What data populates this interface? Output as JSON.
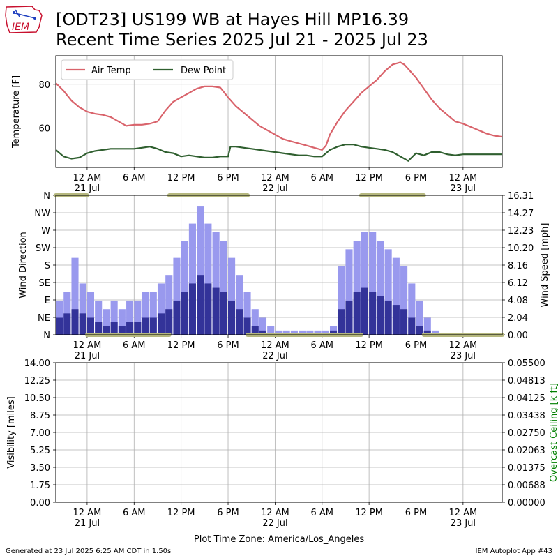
{
  "logo": {
    "text": "IEM"
  },
  "title_line1": "[ODT23] US199 WB at Hayes Hill MP16.39",
  "title_line2": "Recent Time Series 2025 Jul 21 - 2025 Jul 23",
  "footer_left": "Generated at 23 Jul 2025 6:25 AM CDT in 1.50s",
  "footer_right": "IEM Autoplot App #43",
  "timezone_label": "Plot Time Zone: America/Los_Angeles",
  "colors": {
    "air_temp": "#d9636b",
    "dew_point": "#2f5f2f",
    "gust": "#9999ee",
    "speed": "#333399",
    "direction": "#b5b77e",
    "ceiling_label": "#008000",
    "grid": "#b0b0b0"
  },
  "chart_data": [
    {
      "type": "line",
      "panel": "temperature",
      "ylabel": "Temperature [F]",
      "ylim": [
        42,
        93
      ],
      "yticks": [
        "60",
        "80"
      ],
      "ytick_values": [
        60,
        80
      ],
      "x_hours_range": [
        -4,
        53
      ],
      "xtick_hours": [
        0,
        6,
        12,
        18,
        24,
        30,
        36,
        42,
        48
      ],
      "xtick_labels": [
        "12 AM",
        "6 AM",
        "12 PM",
        "6 PM",
        "12 AM",
        "6 AM",
        "12 PM",
        "6 PM",
        "12 AM"
      ],
      "xtick_dates": [
        {
          "hour": 0,
          "label": "21 Jul"
        },
        {
          "hour": 24,
          "label": "22 Jul"
        },
        {
          "hour": 48,
          "label": "23 Jul"
        }
      ],
      "legend": {
        "position": "upper-left",
        "entries": [
          "Air Temp",
          "Dew Point"
        ]
      },
      "series": [
        {
          "name": "Air Temp",
          "x_hours": [
            -4,
            -3,
            -2,
            -1,
            0,
            1,
            2,
            3,
            4,
            5,
            6,
            7,
            8,
            9,
            10,
            11,
            12,
            13,
            14,
            15,
            16,
            17,
            18,
            19,
            20,
            21,
            22,
            23,
            24,
            25,
            26,
            27,
            28,
            29,
            30,
            30.5,
            31,
            32,
            33,
            34,
            35,
            36,
            37,
            38,
            39,
            40,
            40.5,
            41,
            42,
            43,
            44,
            45,
            46,
            47,
            48,
            49,
            50,
            51,
            52,
            53
          ],
          "values": [
            80.5,
            77,
            72.5,
            69.5,
            67.5,
            66.5,
            66,
            65,
            63,
            61,
            61.5,
            61.5,
            62,
            63,
            68,
            72,
            74,
            76,
            78,
            79,
            79,
            78.5,
            74,
            70,
            67,
            64,
            61,
            59,
            57,
            55,
            54,
            53,
            52,
            51,
            50,
            52,
            57,
            63,
            68,
            72,
            76,
            79,
            82,
            86,
            89,
            90,
            89,
            87,
            83,
            78,
            73,
            69,
            66,
            63,
            62,
            60.5,
            59,
            57.5,
            56.5,
            56
          ]
        },
        {
          "name": "Dew Point",
          "x_hours": [
            -4,
            -3,
            -2,
            -1,
            0,
            1,
            2,
            3,
            4,
            5,
            6,
            7,
            8,
            9,
            10,
            11,
            12,
            13,
            14,
            15,
            16,
            17,
            18,
            18.3,
            19,
            20,
            21,
            22,
            23,
            24,
            25,
            26,
            27,
            28,
            29,
            30,
            31,
            32,
            33,
            34,
            35,
            36,
            37,
            38,
            39,
            40,
            41,
            42,
            43,
            44,
            45,
            46,
            47,
            48,
            49,
            50,
            51,
            52,
            53
          ],
          "values": [
            50,
            47,
            46,
            46.5,
            48.5,
            49.5,
            50,
            50.5,
            50.5,
            50.5,
            50.5,
            51,
            51.5,
            50.5,
            49,
            48.5,
            47,
            47.5,
            47,
            46.5,
            46.5,
            47,
            47,
            51.5,
            51.5,
            51,
            50.5,
            50,
            49.5,
            49,
            48.5,
            48,
            47.5,
            47.5,
            47,
            47,
            50,
            51.5,
            52.5,
            52.5,
            51.5,
            51,
            50.5,
            50,
            49,
            47,
            45,
            48.5,
            47.5,
            49,
            49,
            48,
            47.5,
            48,
            48,
            48,
            48,
            48,
            48
          ]
        }
      ]
    },
    {
      "type": "bar",
      "panel": "wind",
      "ylabel": "Wind Direction",
      "ylabel_right": "Wind Speed [mph]",
      "ylim": [
        0,
        16.31
      ],
      "direction_ticks": [
        "N",
        "NE",
        "E",
        "SE",
        "S",
        "SW",
        "W",
        "NW",
        "N"
      ],
      "speed_ticks": [
        "0.00",
        "2.04",
        "4.08",
        "6.12",
        "8.16",
        "10.20",
        "12.23",
        "14.27",
        "16.31"
      ],
      "series": [
        {
          "name": "Gust",
          "x_hours": [
            -4,
            -3,
            -2,
            -1,
            0,
            1,
            2,
            3,
            4,
            5,
            6,
            7,
            8,
            9,
            10,
            11,
            12,
            13,
            14,
            15,
            16,
            17,
            18,
            19,
            20,
            21,
            22,
            23,
            24,
            25,
            26,
            27,
            28,
            29,
            30,
            31,
            32,
            33,
            34,
            35,
            36,
            37,
            38,
            39,
            40,
            41,
            42,
            43,
            44,
            45,
            46,
            47,
            48,
            49,
            50,
            51,
            52,
            53
          ],
          "values": [
            4,
            5,
            9,
            6,
            5,
            4,
            3,
            4,
            3,
            4,
            4,
            5,
            5,
            6,
            7,
            9,
            11,
            13,
            15,
            13,
            12,
            11,
            9,
            7,
            5,
            3,
            2,
            1,
            0.5,
            0.5,
            0.5,
            0.5,
            0.5,
            0.5,
            0.5,
            1,
            8,
            10,
            11,
            12,
            12,
            11,
            10,
            9,
            8,
            6,
            4,
            2,
            0.5,
            0,
            0,
            0,
            0,
            0,
            0,
            0,
            0,
            0
          ]
        },
        {
          "name": "Speed",
          "x_hours": [
            -4,
            -3,
            -2,
            -1,
            0,
            1,
            2,
            3,
            4,
            5,
            6,
            7,
            8,
            9,
            10,
            11,
            12,
            13,
            14,
            15,
            16,
            17,
            18,
            19,
            20,
            21,
            22,
            23,
            24,
            25,
            26,
            27,
            28,
            29,
            30,
            31,
            32,
            33,
            34,
            35,
            36,
            37,
            38,
            39,
            40,
            41,
            42,
            43,
            44,
            45,
            46,
            47,
            48,
            49,
            50,
            51,
            52,
            53
          ],
          "values": [
            2,
            2.5,
            3,
            2.5,
            2,
            1.5,
            1,
            1.5,
            1,
            1.5,
            1.5,
            2,
            2,
            2.5,
            3,
            4,
            5,
            6,
            7,
            6,
            5.5,
            5,
            4,
            3,
            2,
            1,
            0.5,
            0,
            0,
            0,
            0,
            0,
            0,
            0,
            0,
            0.5,
            3,
            4,
            5,
            5.5,
            5,
            4.5,
            4,
            3.5,
            3,
            2,
            1,
            0.5,
            0,
            0,
            0,
            0,
            0,
            0,
            0,
            0,
            0,
            0
          ]
        },
        {
          "name": "Direction",
          "segments": [
            {
              "from_hour": -4,
              "to_hour": 0,
              "degrees": 360
            },
            {
              "from_hour": 0,
              "to_hour": 10.5,
              "degrees": 0
            },
            {
              "from_hour": 10.5,
              "to_hour": 20.5,
              "degrees": 360
            },
            {
              "from_hour": 20.5,
              "to_hour": 35,
              "degrees": 0
            },
            {
              "from_hour": 35,
              "to_hour": 43,
              "degrees": 360
            },
            {
              "from_hour": 43,
              "to_hour": 53,
              "degrees": 0
            }
          ]
        }
      ]
    },
    {
      "type": "line",
      "panel": "visibility",
      "ylabel": "Visibility [miles]",
      "ylabel_right": "Overcast Ceiling [k ft]",
      "ylim": [
        0,
        14
      ],
      "yticks": [
        "0.00",
        "1.75",
        "3.50",
        "5.25",
        "7.00",
        "8.75",
        "10.50",
        "12.25",
        "14.00"
      ],
      "yticks_right": [
        "0.00000",
        "0.00688",
        "0.01375",
        "0.02063",
        "0.02750",
        "0.03438",
        "0.04125",
        "0.04813",
        "0.05500"
      ],
      "series": []
    }
  ]
}
